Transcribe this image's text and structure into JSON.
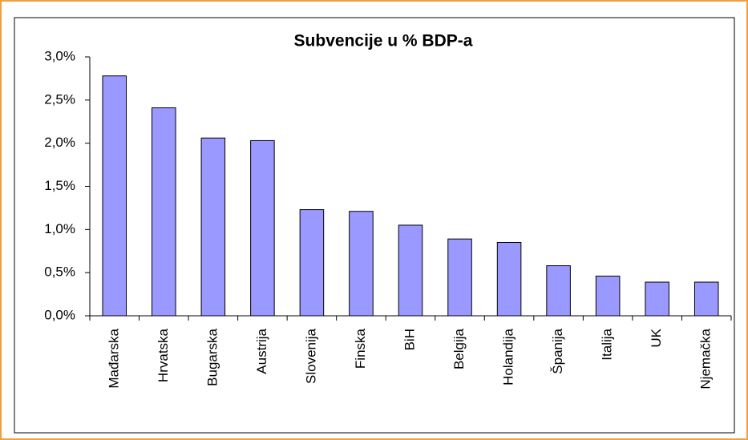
{
  "chart_data": {
    "type": "bar",
    "title": "Subvencije u % BDP-a",
    "categories": [
      "Mađarska",
      "Hrvatska",
      "Bugarska",
      "Austrija",
      "Slovenija",
      "Finska",
      "BiH",
      "Belgija",
      "Holandija",
      "Španija",
      "Italija",
      "UK",
      "Njemačka"
    ],
    "values": [
      2.78,
      2.41,
      2.06,
      2.03,
      1.23,
      1.21,
      1.05,
      0.89,
      0.85,
      0.58,
      0.46,
      0.39,
      0.39
    ],
    "color": "#9999ff",
    "ylim": [
      0,
      3
    ],
    "yticks": [
      {
        "value": 0,
        "label": "0,0%"
      },
      {
        "value": 0.5,
        "label": "0,5%"
      },
      {
        "value": 1,
        "label": "1,0%"
      },
      {
        "value": 1.5,
        "label": "1,5%"
      },
      {
        "value": 2,
        "label": "2,0%"
      },
      {
        "value": 2.5,
        "label": "2,5%"
      },
      {
        "value": 3,
        "label": "3,0%"
      }
    ],
    "grid": false
  }
}
